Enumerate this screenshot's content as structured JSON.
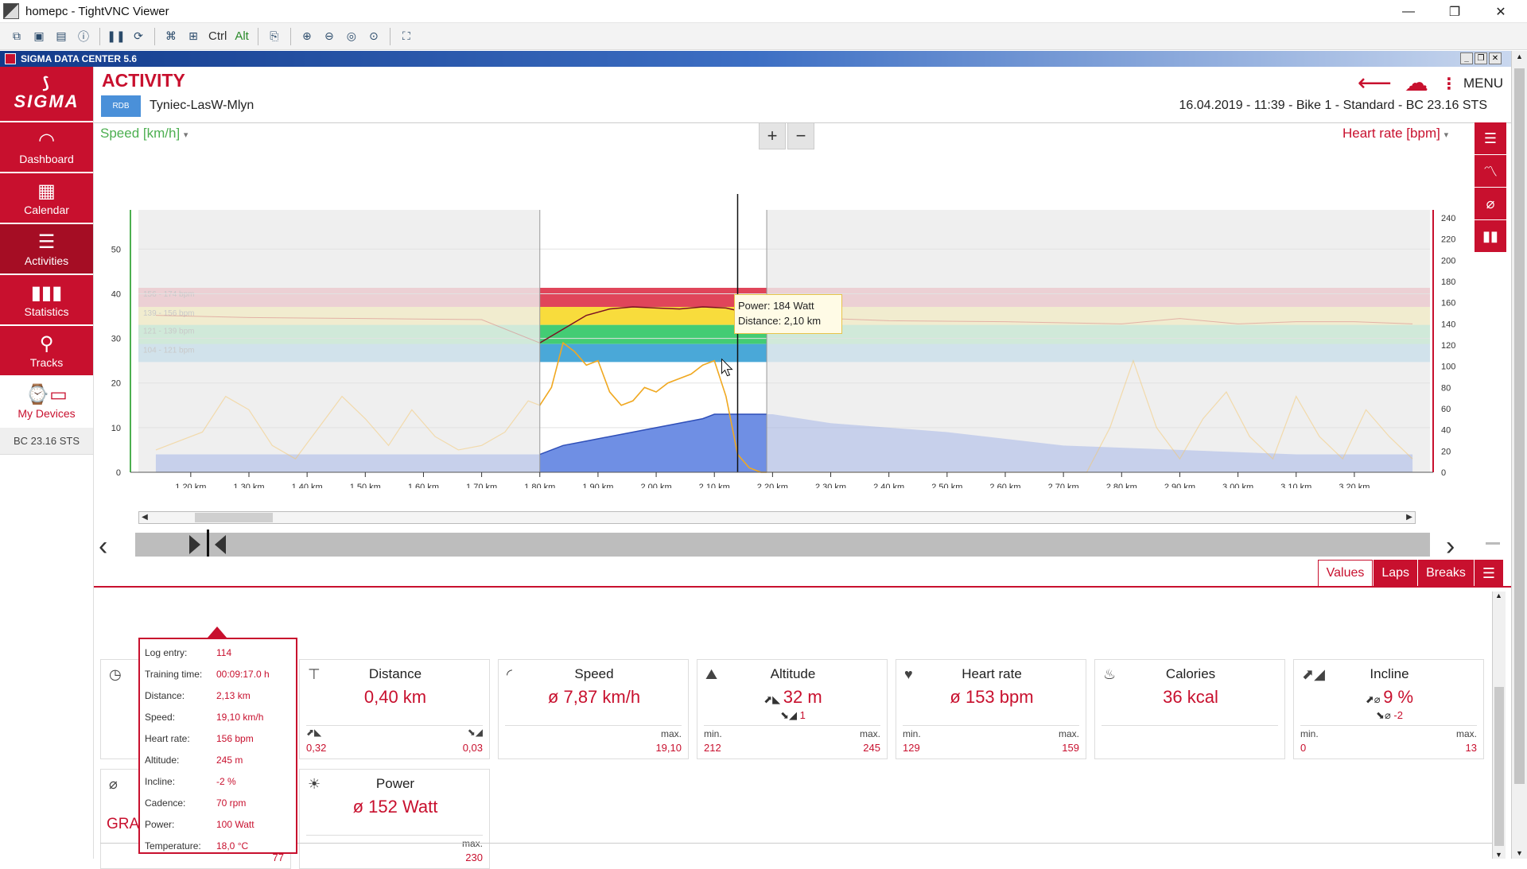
{
  "vnc": {
    "title": "homepc - TightVNC Viewer",
    "toolbar_ctrl": "Ctrl",
    "toolbar_alt": "Alt"
  },
  "app": {
    "title": "SIGMA DATA CENTER 5.6"
  },
  "sidebar": {
    "logo": "SIGMA",
    "items": [
      {
        "label": "Dashboard",
        "icon": "gauge-icon"
      },
      {
        "label": "Calendar",
        "icon": "calendar-icon"
      },
      {
        "label": "Activities",
        "icon": "list-icon"
      },
      {
        "label": "Statistics",
        "icon": "bar-chart-icon"
      },
      {
        "label": "Tracks",
        "icon": "map-pin-icon"
      },
      {
        "label": "My Devices",
        "icon": "devices-icon"
      }
    ],
    "device_label": "BC 23.16 STS"
  },
  "header": {
    "title": "ACTIVITY",
    "badge": "RDB",
    "activity_name": "Tyniec-LasW-Mlyn",
    "meta": "16.04.2019  -  11:39  -  Bike 1  -  Standard  -  BC 23.16 STS",
    "menu_label": "MENU"
  },
  "chart": {
    "left_label": "Speed [km/h]",
    "right_label": "Heart rate [bpm]",
    "zoom_in": "+",
    "zoom_out": "−",
    "tooltip_line1": "Power: 184 Watt",
    "tooltip_line2": "Distance: 2,10 km"
  },
  "chart_data": {
    "type": "area",
    "x_ticks": [
      "1,20 km",
      "1,30 km",
      "1,40 km",
      "1,50 km",
      "1,60 km",
      "1,70 km",
      "1,80 km",
      "1,90 km",
      "2,00 km",
      "2,10 km",
      "2,20 km",
      "2,30 km",
      "2,40 km",
      "2,50 km",
      "2,60 km",
      "2,70 km",
      "2,80 km",
      "2,90 km",
      "3,00 km",
      "3,10 km",
      "3,20 km"
    ],
    "y_left_ticks": [
      0,
      10,
      20,
      30,
      40,
      50
    ],
    "y_right_ticks": [
      0,
      20,
      40,
      60,
      80,
      100,
      120,
      140,
      160,
      180,
      200,
      220,
      240
    ],
    "zones": [
      {
        "label": "156 - 174 bpm",
        "from": 156,
        "to": 174,
        "color": "#e0455a"
      },
      {
        "label": "139 - 156 bpm",
        "from": 139,
        "to": 156,
        "color": "#f8dc3c"
      },
      {
        "label": "121 - 139 bpm",
        "from": 121,
        "to": 139,
        "color": "#43cc74"
      },
      {
        "label": "104 - 121 bpm",
        "from": 104,
        "to": 121,
        "color": "#4aa8d8"
      }
    ],
    "selection_km": [
      1.8,
      2.19
    ],
    "cursor_km": 2.14,
    "series": [
      {
        "name": "Speed [km/h]",
        "color": "#f0b030",
        "x": [
          1.14,
          1.18,
          1.22,
          1.26,
          1.3,
          1.34,
          1.38,
          1.42,
          1.46,
          1.5,
          1.54,
          1.58,
          1.62,
          1.66,
          1.7,
          1.74,
          1.78,
          1.8,
          1.82,
          1.84,
          1.86,
          1.88,
          1.9,
          1.92,
          1.94,
          1.96,
          1.98,
          2.0,
          2.02,
          2.04,
          2.06,
          2.08,
          2.1,
          2.12,
          2.14,
          2.16,
          2.18,
          2.2,
          2.3,
          2.5,
          2.7,
          2.74,
          2.78,
          2.82,
          2.86,
          2.9,
          2.94,
          2.98,
          3.02,
          3.06,
          3.1,
          3.14,
          3.18,
          3.22,
          3.26,
          3.3
        ],
        "values": [
          5,
          7,
          9,
          17,
          14,
          6,
          3,
          10,
          17,
          12,
          6,
          14,
          8,
          5,
          6,
          9,
          16,
          15,
          19,
          29,
          27,
          24,
          25,
          18,
          15,
          16,
          19,
          18,
          20,
          21,
          22,
          24,
          25,
          17,
          4,
          1,
          0,
          0,
          0,
          0,
          0,
          0,
          10,
          25,
          10,
          3,
          12,
          18,
          8,
          3,
          17,
          8,
          3,
          14,
          8,
          3
        ]
      },
      {
        "name": "Heart rate [bpm]",
        "color": "#8a1a2a",
        "x": [
          1.14,
          1.3,
          1.5,
          1.7,
          1.8,
          1.84,
          1.88,
          1.92,
          1.96,
          2.0,
          2.04,
          2.08,
          2.12,
          2.16,
          2.2,
          2.4,
          2.6,
          2.8,
          2.9,
          3.0,
          3.1,
          3.2,
          3.3
        ],
        "values": [
          148,
          146,
          145,
          144,
          122,
          135,
          148,
          154,
          156,
          155,
          154,
          156,
          155,
          150,
          147,
          143,
          142,
          140,
          145,
          140,
          142,
          142,
          140
        ]
      },
      {
        "name": "Altitude",
        "color": "#4a6fd8",
        "x": [
          1.14,
          1.3,
          1.5,
          1.7,
          1.8,
          1.84,
          1.88,
          1.92,
          1.96,
          2.0,
          2.04,
          2.08,
          2.1,
          2.12,
          2.14,
          2.2,
          2.3,
          2.4,
          2.5,
          2.7,
          2.9,
          3.1,
          3.3
        ],
        "values": [
          4,
          4,
          4,
          4,
          4,
          6,
          7,
          8,
          9,
          10,
          11,
          12,
          13,
          13,
          13,
          13,
          11,
          10,
          9,
          6,
          5,
          4,
          4
        ]
      }
    ]
  },
  "tabs": [
    "Values",
    "Laps",
    "Breaks"
  ],
  "log_entry": [
    {
      "k": "Log entry:",
      "v": "114"
    },
    {
      "k": "Training time:",
      "v": "00:09:17.0 h"
    },
    {
      "k": "Distance:",
      "v": "2,13 km"
    },
    {
      "k": "Speed:",
      "v": "19,10 km/h"
    },
    {
      "k": "Heart rate:",
      "v": "156 bpm"
    },
    {
      "k": "Altitude:",
      "v": "245 m"
    },
    {
      "k": "Incline:",
      "v": "-2 %"
    },
    {
      "k": "Cadence:",
      "v": "70 rpm"
    },
    {
      "k": "Power:",
      "v": "100 Watt"
    },
    {
      "k": "Temperature:",
      "v": "18,0 °C"
    }
  ],
  "cards": {
    "distance": {
      "title": "Distance",
      "value": "0,40 km",
      "left_val": "0,32",
      "right_val": "0,03"
    },
    "speed": {
      "title": "Speed",
      "value": "ø 7,87 km/h",
      "max_label": "max.",
      "max_val": "19,10"
    },
    "altitude": {
      "title": "Altitude",
      "value": "32 m",
      "sub": "1",
      "min_label": "min.",
      "min_val": "212",
      "max_label": "max.",
      "max_val": "245"
    },
    "heart_rate": {
      "title": "Heart rate",
      "value": "ø 153 bpm",
      "min_label": "min.",
      "min_val": "129",
      "max_label": "max.",
      "max_val": "159"
    },
    "calories": {
      "title": "Calories",
      "value": "36 kcal"
    },
    "incline": {
      "title": "Incline",
      "value": "9 %",
      "sub": "-2",
      "min_label": "min.",
      "min_val": "0",
      "max_label": "max.",
      "max_val": "13"
    },
    "power": {
      "title": "Power",
      "value": "ø 152 Watt",
      "max_label": "max.",
      "max_val": "230"
    },
    "hidden_card_val": "77"
  },
  "graph_analysis": "GRAPH-BASED ANALYSIS"
}
